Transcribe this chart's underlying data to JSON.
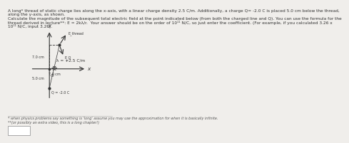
{
  "bg_color": "#f0eeeb",
  "text_color": "#333333",
  "line_color": "#555555",
  "title_text1": "A long* thread of static charge lies along the x-axis, with a linear charge density 2.5 C/m. Additionally, a charge Q= -2.0 C is placed 5.0 cm below the thread,",
  "title_text2": "along the y-axis, as shown.",
  "body_text1": "Calculate the magnitude of the subsequent total electric field at the point indicated below (from both the charged line and Q). You can use the formula for the",
  "body_text2": "thread derived in lecture**: E = 2kλ/r.  Your answer should be on the order of 10¹¹ N/C, so just enter the coefficient. (For example, if you calculated 3.26 x",
  "body_text3": "10¹¹ N/C, input 3.26).",
  "foot1": "* when physics problems say something is 'long' assume you may use the approximation for when it is basically infinite.",
  "foot2": "**(or possibly an extra video, this is a long chapter!)",
  "lambda_label": "λ = +2.5 C/m",
  "Q_label": "Q = -2.0 C",
  "E_thread_label": "E_thread",
  "E_Q_label": "E_Q",
  "dim1": "7.0 cm",
  "dim2": "7.0 cm",
  "dim3": "5.0 cm",
  "axis_color": "#333333",
  "sep_color": "#aaaaaa",
  "foot_color": "#555555"
}
